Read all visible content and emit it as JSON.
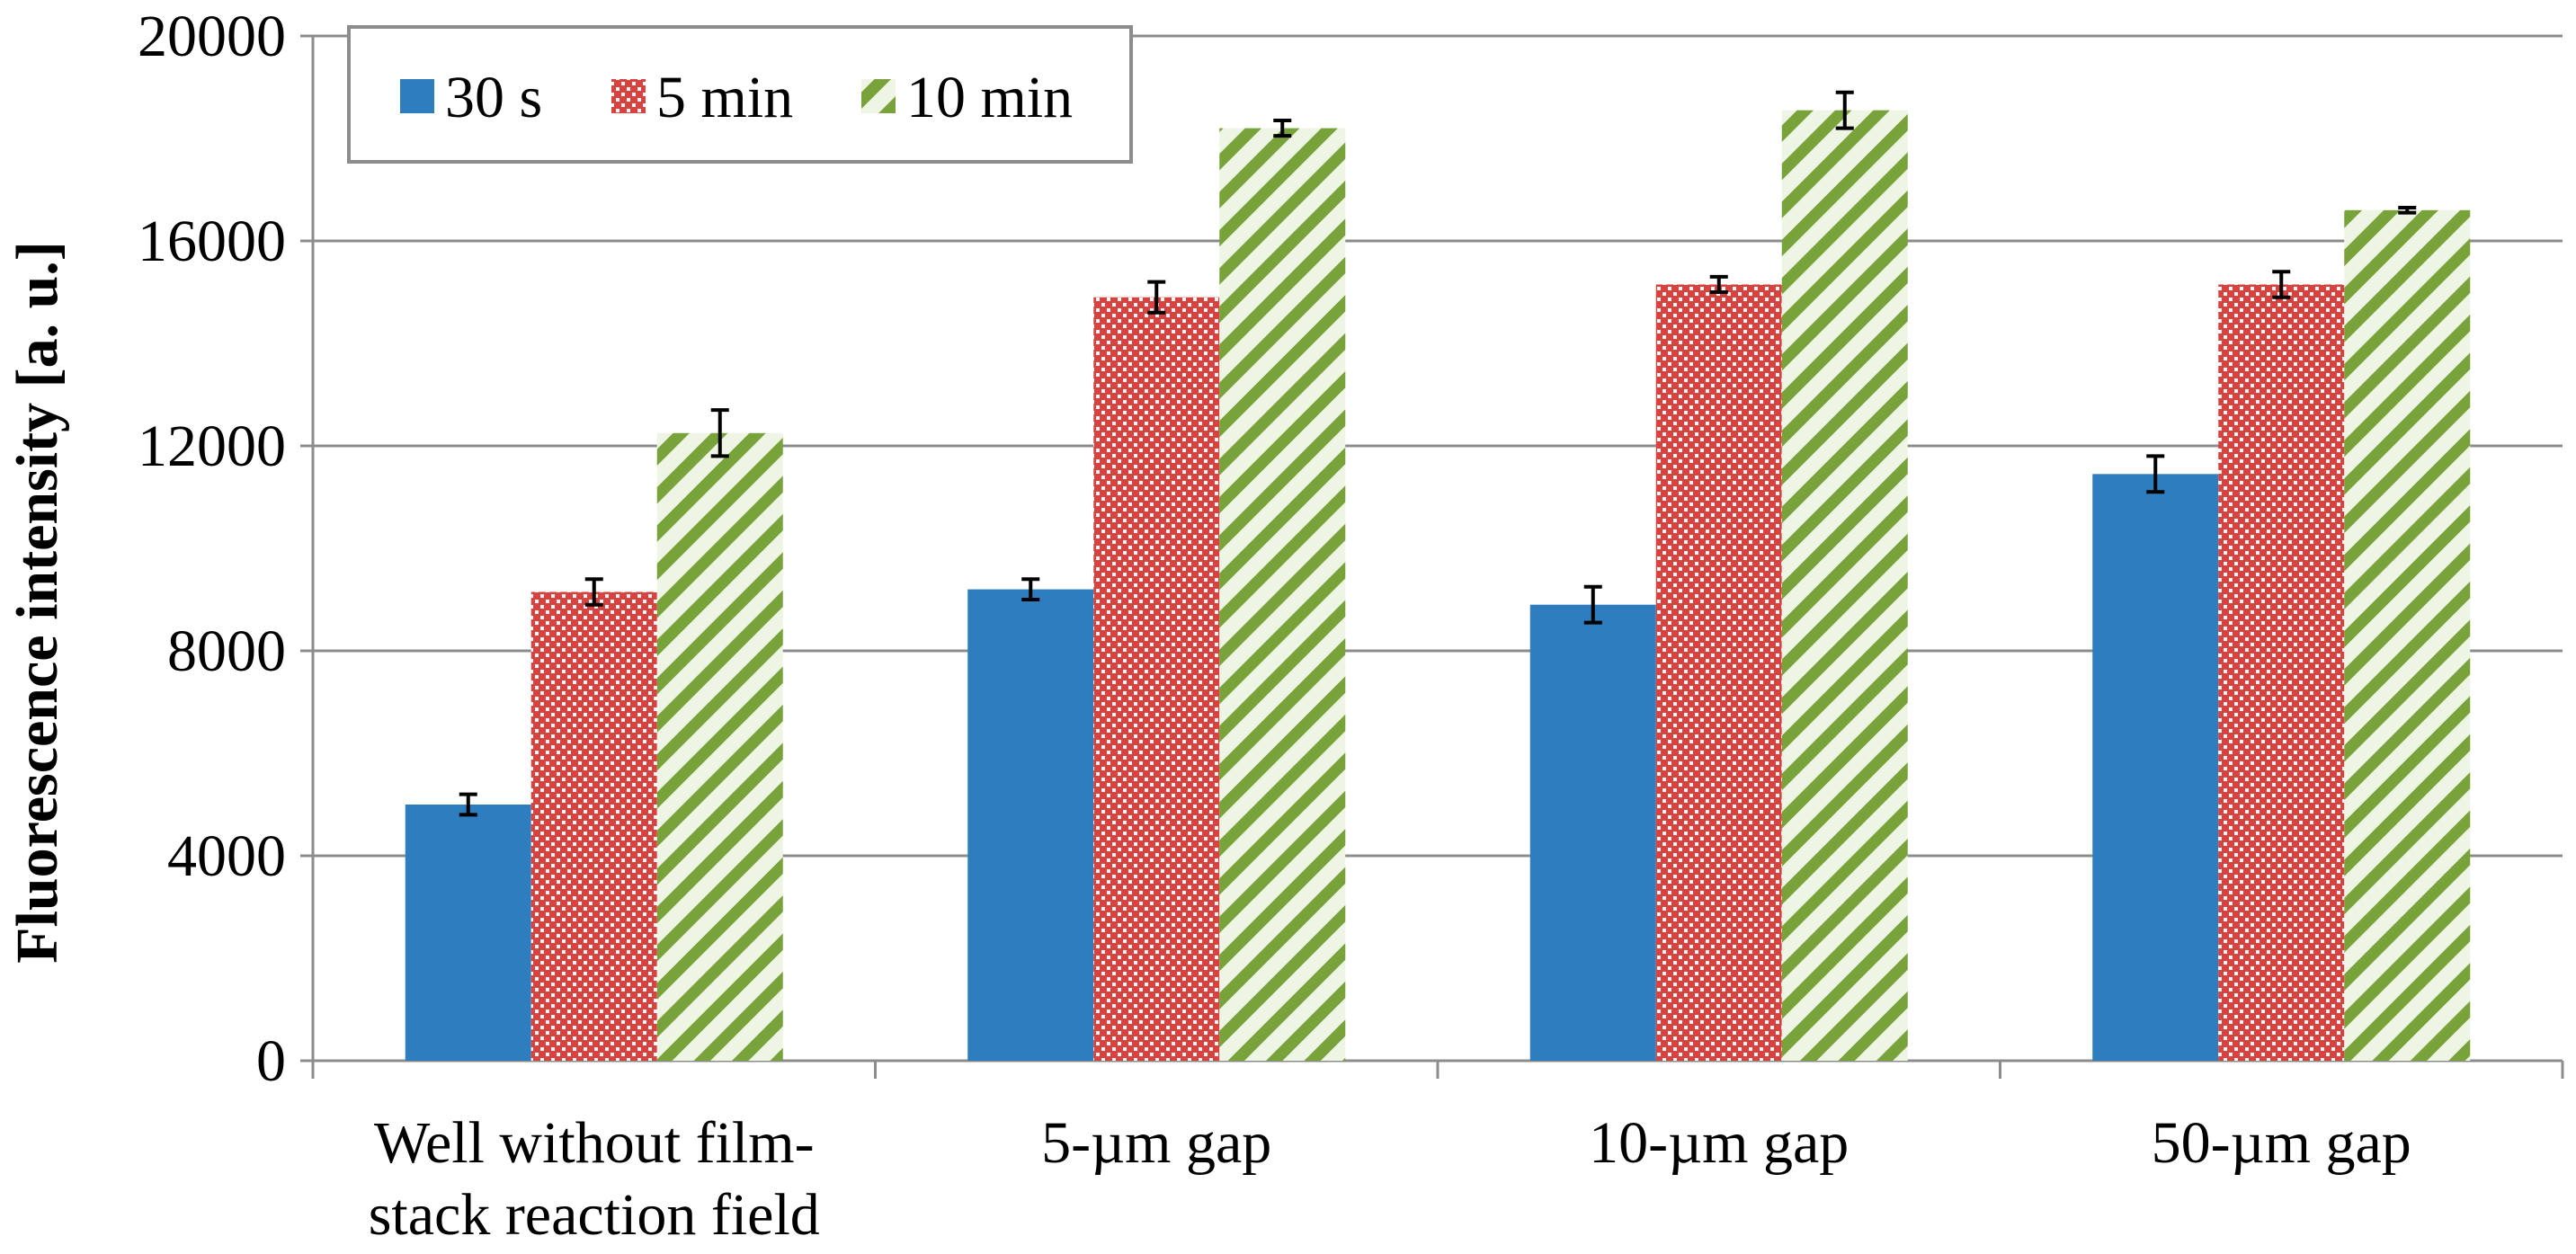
{
  "chart_data": {
    "type": "bar",
    "title": "",
    "xlabel": "",
    "ylabel": "Fluorescence intensity [a. u.]",
    "ylim": [
      0,
      20000
    ],
    "yticks": [
      0,
      4000,
      8000,
      12000,
      16000,
      20000
    ],
    "grid": true,
    "legend_position": "top-left",
    "categories": [
      [
        "Well without film-",
        "stack reaction field"
      ],
      [
        "5-µm gap"
      ],
      [
        "10-µm gap"
      ],
      [
        "50-µm gap"
      ]
    ],
    "series": [
      {
        "name": "30 s",
        "color": "#2e7ebf",
        "pattern": "solid",
        "values": [
          5000,
          9200,
          8900,
          11450
        ],
        "errors": [
          200,
          200,
          350,
          350
        ]
      },
      {
        "name": "5 min",
        "color": "#d9423f",
        "pattern": "dotted",
        "values": [
          9150,
          14900,
          15150,
          15150
        ],
        "errors": [
          250,
          300,
          150,
          250
        ]
      },
      {
        "name": "10 min",
        "color": "#77a33a",
        "pattern": "diagonal-stripes",
        "values": [
          12250,
          18200,
          18550,
          16600
        ],
        "errors": [
          450,
          150,
          350,
          50
        ]
      }
    ]
  }
}
